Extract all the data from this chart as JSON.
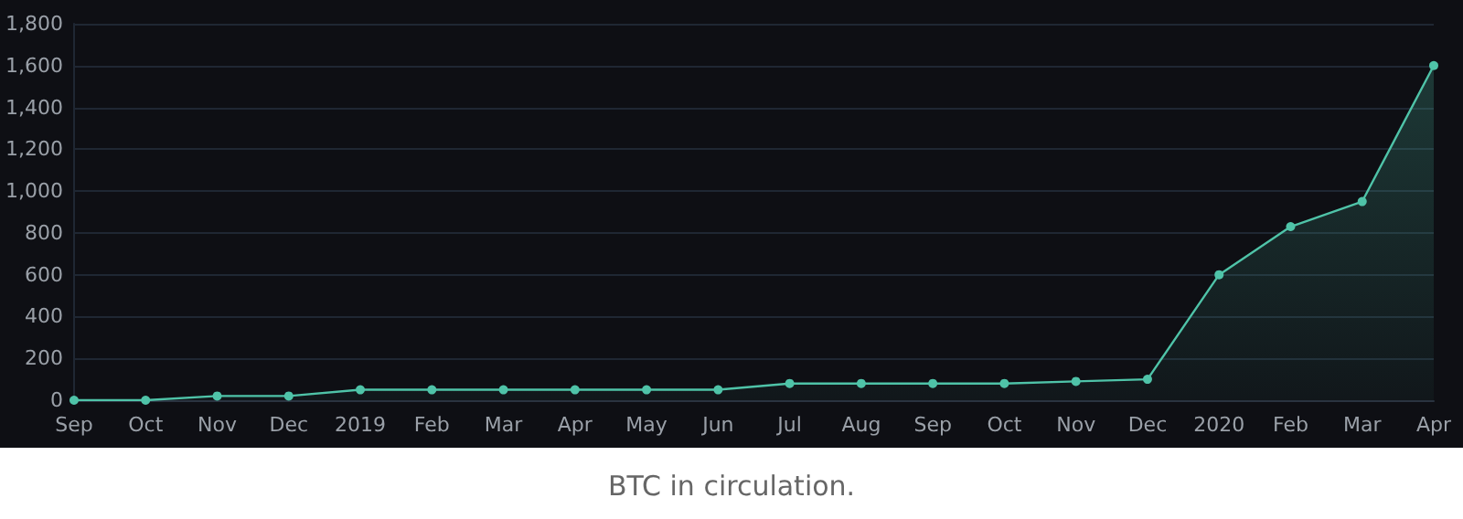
{
  "chart_data": {
    "type": "area",
    "categories": [
      "Sep",
      "Oct",
      "Nov",
      "Dec",
      "2019",
      "Feb",
      "Mar",
      "Apr",
      "May",
      "Jun",
      "Jul",
      "Aug",
      "Sep",
      "Oct",
      "Nov",
      "Dec",
      "2020",
      "Feb",
      "Mar",
      "Apr"
    ],
    "series": [
      {
        "color": "#4fc3a8",
        "values": [
          0,
          0,
          20,
          20,
          50,
          50,
          50,
          50,
          50,
          50,
          80,
          80,
          80,
          80,
          90,
          100,
          600,
          830,
          950,
          1600
        ]
      }
    ],
    "ylim": [
      0,
      1800
    ],
    "yticks": [
      {
        "value": 0,
        "label": "0"
      },
      {
        "value": 200,
        "label": "200"
      },
      {
        "value": 400,
        "label": "400"
      },
      {
        "value": 600,
        "label": "600"
      },
      {
        "value": 800,
        "label": "800"
      },
      {
        "value": 1000,
        "label": "1,000"
      },
      {
        "value": 1200,
        "label": "1,200"
      },
      {
        "value": 1400,
        "label": "1,400"
      },
      {
        "value": 1600,
        "label": "1,600"
      },
      {
        "value": 1800,
        "label": "1,800"
      }
    ],
    "grid": "y",
    "marker": "circle",
    "annotations": [
      "BTC in circulation."
    ]
  }
}
